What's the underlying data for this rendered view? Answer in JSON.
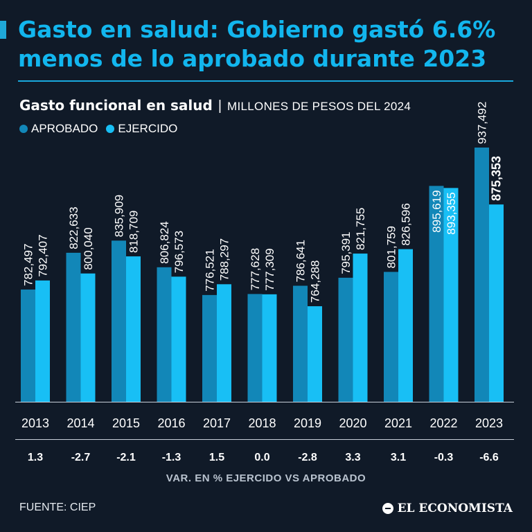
{
  "header": {
    "title": "Gasto en salud: Gobierno gastó 6.6% menos de lo aprobado durante 2023"
  },
  "subtitle": {
    "main": "Gasto funcional en salud",
    "separator": "|",
    "units": "MILLONES DE PESOS DEL 2024"
  },
  "legend": {
    "aprobado": "APROBADO",
    "ejercido": "EJERCIDO"
  },
  "colors": {
    "aprobado": "#1287b8",
    "ejercido": "#18bff5",
    "title": "#12b6ee",
    "background": "#101a28"
  },
  "chart_data": {
    "type": "bar",
    "title": "Gasto funcional en salud",
    "ylabel": "Millones de pesos del 2024",
    "categories": [
      "2013",
      "2014",
      "2015",
      "2016",
      "2017",
      "2018",
      "2019",
      "2020",
      "2021",
      "2022",
      "2023"
    ],
    "series": [
      {
        "name": "APROBADO",
        "values": [
          782497,
          822633,
          835909,
          806824,
          776521,
          777628,
          786641,
          795391,
          801759,
          895619,
          937492
        ],
        "labels": [
          "782,497",
          "822,633",
          "835,909",
          "806,824",
          "776,521",
          "777,628",
          "786,641",
          "795,391",
          "801,759",
          "895,619",
          "937,492"
        ]
      },
      {
        "name": "EJERCIDO",
        "values": [
          792407,
          800040,
          818709,
          796573,
          788297,
          777309,
          764288,
          821755,
          826596,
          893355,
          875353
        ],
        "labels": [
          "792,407",
          "800,040",
          "818,709",
          "796,573",
          "788,297",
          "777,309",
          "764,288",
          "821,755",
          "826,596",
          "893,355",
          "875,353"
        ]
      }
    ],
    "variation": [
      "1.3",
      "-2.7",
      "-2.1",
      "-1.3",
      "1.5",
      "0.0",
      "-2.8",
      "3.3",
      "3.1",
      "-0.3",
      "-6.6"
    ],
    "variation_caption": "VAR. EN %  EJERCIDO VS APROBADO",
    "ylim": [
      660000,
      937492
    ],
    "grid": false
  },
  "footer": {
    "source": "FUENTE: CIEP",
    "logo": "EL ECONOMISTA"
  }
}
